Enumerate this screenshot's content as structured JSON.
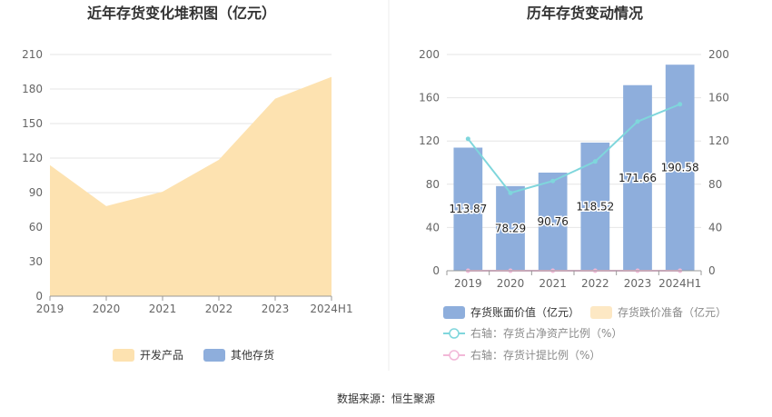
{
  "source": "数据来源：恒生聚源",
  "chart_data": [
    {
      "type": "area",
      "title": "近年存货变化堆积图（亿元）",
      "x": [
        "2019",
        "2020",
        "2021",
        "2022",
        "2023",
        "2024H1"
      ],
      "series": [
        {
          "name": "开发产品",
          "values": [
            113.87,
            78.29,
            90.76,
            118.52,
            171.66,
            190.58
          ],
          "color": "#fde2b0"
        },
        {
          "name": "其他存货",
          "values": [
            0,
            0,
            0,
            0,
            0,
            0
          ],
          "color": "#8eaedc"
        }
      ],
      "ylim": [
        0,
        210
      ],
      "yticks": [
        "0",
        "30",
        "60",
        "90",
        "120",
        "150",
        "180",
        "210"
      ],
      "grid": true,
      "legend_position": "bottom"
    },
    {
      "type": "bar",
      "title": "历年存货变动情况",
      "categories": [
        "2019",
        "2020",
        "2021",
        "2022",
        "2023",
        "2024H1"
      ],
      "series": [
        {
          "name": "存货账面价值（亿元）",
          "values": [
            113.87,
            78.29,
            90.76,
            118.52,
            171.66,
            190.58
          ],
          "color": "#8eaedc",
          "axis": "left",
          "kind": "bar"
        },
        {
          "name": "存货跌价准备（亿元）",
          "values": [
            0,
            0,
            0,
            0,
            0,
            0
          ],
          "color": "#fde8c4",
          "axis": "left",
          "kind": "bar"
        },
        {
          "name": "右轴：存货占净资产比例（%）",
          "values": [
            122,
            72,
            83,
            101,
            138,
            154
          ],
          "color": "#7fd6dc",
          "axis": "right",
          "kind": "line"
        },
        {
          "name": "右轴：存货计提比例（%）",
          "values": [
            0,
            0,
            0,
            0,
            0,
            0
          ],
          "color": "#f2b8d8",
          "axis": "right",
          "kind": "line"
        }
      ],
      "data_labels": [
        "113.87",
        "78.29",
        "90.76",
        "118.52",
        "171.66",
        "190.58"
      ],
      "ylim_left": [
        0,
        200
      ],
      "ylim_right": [
        0,
        200
      ],
      "yticks_left": [
        "0",
        "40",
        "80",
        "120",
        "160",
        "200"
      ],
      "yticks_right": [
        "0",
        "40",
        "80",
        "120",
        "160",
        "200"
      ],
      "grid": true,
      "legend_position": "bottom"
    }
  ]
}
